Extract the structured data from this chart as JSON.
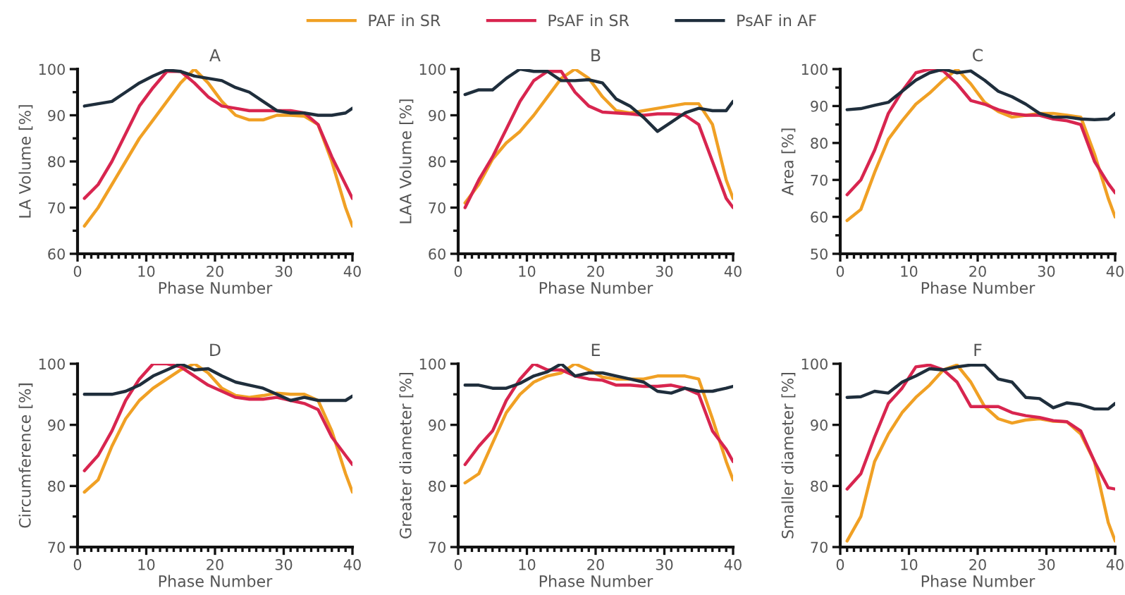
{
  "chart_data": [
    {
      "type": "line",
      "title": "A",
      "xlabel": "Phase Number",
      "ylabel": "LA Volume [%]",
      "xlim": [
        0,
        40
      ],
      "xticks": [
        0,
        10,
        20,
        30,
        40
      ],
      "ylim": [
        60,
        100
      ],
      "yticks": [
        60,
        70,
        80,
        90,
        100
      ],
      "legend": "top",
      "x": [
        1,
        3,
        5,
        7,
        9,
        11,
        13,
        15,
        17,
        19,
        21,
        23,
        25,
        27,
        29,
        31,
        33,
        35,
        37,
        39,
        40
      ],
      "series": [
        {
          "name": "PAF in SR",
          "color": "#f0a024",
          "values": [
            66,
            70,
            75,
            80,
            85,
            89,
            93,
            97,
            100,
            97,
            93,
            90,
            89,
            89,
            90,
            90,
            89.8,
            88,
            80,
            70,
            66
          ]
        },
        {
          "name": "PsAF in SR",
          "color": "#d8254f",
          "values": [
            72,
            75,
            80,
            86,
            92,
            96,
            99.5,
            99.5,
            97,
            94,
            92,
            91.5,
            91,
            91,
            91,
            91,
            90.5,
            88,
            81,
            75,
            72
          ]
        },
        {
          "name": "PsAF in AF",
          "color": "#1f2e3c",
          "values": [
            92,
            92.5,
            93,
            95,
            97,
            98.5,
            99.8,
            99.5,
            98.5,
            98,
            97.5,
            96,
            95,
            93,
            91,
            90.5,
            90.5,
            90,
            90,
            90.5,
            91.5
          ]
        }
      ]
    },
    {
      "type": "line",
      "title": "B",
      "xlabel": "Phase Number",
      "ylabel": "LAA Volume [%]",
      "xlim": [
        0,
        40
      ],
      "xticks": [
        0,
        10,
        20,
        30,
        40
      ],
      "ylim": [
        60,
        100
      ],
      "yticks": [
        60,
        70,
        80,
        90,
        100
      ],
      "x": [
        1,
        3,
        5,
        7,
        9,
        11,
        13,
        15,
        17,
        19,
        21,
        23,
        25,
        27,
        29,
        31,
        33,
        35,
        37,
        39,
        40
      ],
      "series": [
        {
          "color": "#f0a024",
          "values": [
            71,
            75,
            80.5,
            84,
            86.5,
            90,
            94,
            98,
            100,
            98,
            94,
            91,
            90.5,
            91,
            91.5,
            92,
            92.5,
            92.5,
            88,
            76,
            72
          ]
        },
        {
          "color": "#d8254f",
          "values": [
            70,
            76,
            81,
            87,
            93,
            97.5,
            99.5,
            99.5,
            95,
            92,
            90.7,
            90.5,
            90.3,
            90,
            90.3,
            90.3,
            90,
            88,
            80,
            72,
            70
          ]
        },
        {
          "color": "#1f2e3c",
          "values": [
            94.5,
            95.5,
            95.5,
            98,
            100,
            99.5,
            99.5,
            97.5,
            97.5,
            97.7,
            97,
            93.5,
            92,
            89.5,
            86.5,
            88.5,
            90.5,
            91.5,
            91,
            91,
            93
          ]
        }
      ]
    },
    {
      "type": "line",
      "title": "C",
      "xlabel": "Phase Number",
      "ylabel": "Area [%]",
      "xlim": [
        0,
        40
      ],
      "xticks": [
        0,
        10,
        20,
        30,
        40
      ],
      "ylim": [
        50,
        100
      ],
      "yticks": [
        50,
        60,
        70,
        80,
        90,
        100
      ],
      "x": [
        1,
        3,
        5,
        7,
        9,
        11,
        13,
        15,
        17,
        19,
        21,
        23,
        25,
        27,
        29,
        31,
        33,
        35,
        37,
        39,
        40
      ],
      "series": [
        {
          "color": "#f0a024",
          "values": [
            59,
            62,
            72,
            81,
            86,
            90.5,
            93.5,
            97,
            100,
            96,
            91,
            88.5,
            87,
            87.5,
            88,
            88,
            87.5,
            87,
            77,
            65,
            60
          ]
        },
        {
          "color": "#d8254f",
          "values": [
            66,
            70,
            78,
            88,
            94,
            99,
            100,
            99.5,
            96,
            91.5,
            90.5,
            89,
            88,
            87.5,
            87.5,
            86.5,
            86,
            85,
            75,
            69,
            66.5
          ]
        },
        {
          "color": "#1f2e3c",
          "values": [
            89,
            89.3,
            90.2,
            91,
            94,
            97,
            99,
            100,
            99,
            99.5,
            97,
            94,
            92.5,
            90.5,
            88,
            87,
            87,
            86.5,
            86.3,
            86.5,
            88
          ]
        }
      ]
    },
    {
      "type": "line",
      "title": "D",
      "xlabel": "Phase Number",
      "ylabel": "Circumference [%]",
      "xlim": [
        0,
        40
      ],
      "xticks": [
        0,
        10,
        20,
        30,
        40
      ],
      "ylim": [
        70,
        100
      ],
      "yticks": [
        70,
        80,
        90,
        100
      ],
      "x": [
        1,
        3,
        5,
        7,
        9,
        11,
        13,
        15,
        17,
        19,
        21,
        23,
        25,
        27,
        29,
        31,
        33,
        35,
        37,
        39,
        40
      ],
      "series": [
        {
          "color": "#f0a024",
          "values": [
            79,
            81,
            86.5,
            91,
            94,
            96,
            97.5,
            99,
            100,
            98.5,
            96,
            94.8,
            94.5,
            94.8,
            95.2,
            95,
            95,
            94,
            89,
            82,
            79
          ]
        },
        {
          "color": "#d8254f",
          "values": [
            82.5,
            85,
            89,
            94,
            97.5,
            100,
            100,
            99.5,
            98,
            96.5,
            95.5,
            94.5,
            94.2,
            94.2,
            94.5,
            94,
            93.5,
            92.5,
            88,
            85,
            83.5
          ]
        },
        {
          "color": "#1f2e3c",
          "values": [
            95,
            95,
            95,
            95.5,
            96.5,
            98,
            99,
            100,
            99,
            99.2,
            98,
            97,
            96.5,
            96,
            95,
            94,
            94.5,
            94,
            94,
            94,
            94.7
          ]
        }
      ]
    },
    {
      "type": "line",
      "title": "E",
      "xlabel": "Phase Number",
      "ylabel": "Greater diameter [%]",
      "xlim": [
        0,
        40
      ],
      "xticks": [
        0,
        10,
        20,
        30,
        40
      ],
      "ylim": [
        70,
        100
      ],
      "yticks": [
        70,
        80,
        90,
        100
      ],
      "x": [
        1,
        3,
        5,
        7,
        9,
        11,
        13,
        15,
        17,
        19,
        21,
        23,
        25,
        27,
        29,
        31,
        33,
        35,
        37,
        39,
        40
      ],
      "series": [
        {
          "color": "#f0a024",
          "values": [
            80.5,
            82,
            87,
            92,
            95,
            97,
            98,
            98.5,
            100,
            99,
            97.8,
            97.5,
            97.5,
            97.5,
            98,
            98,
            98,
            97.5,
            91,
            84,
            81
          ]
        },
        {
          "color": "#d8254f",
          "values": [
            83.5,
            86.5,
            89,
            94,
            97.5,
            100,
            99,
            99,
            98,
            97.5,
            97.3,
            96.5,
            96.5,
            96.3,
            96.3,
            96.5,
            96,
            95,
            89,
            86,
            84
          ]
        },
        {
          "color": "#1f2e3c",
          "values": [
            96.5,
            96.5,
            96,
            96,
            96.8,
            98,
            98.7,
            100,
            98,
            98.5,
            98.5,
            98,
            97.5,
            97,
            95.5,
            95.2,
            96,
            95.5,
            95.5,
            96,
            96.3
          ]
        }
      ]
    },
    {
      "type": "line",
      "title": "F",
      "xlabel": "Phase Number",
      "ylabel": "Smaller diameter [%]",
      "xlim": [
        0,
        40
      ],
      "xticks": [
        0,
        10,
        20,
        30,
        40
      ],
      "ylim": [
        70,
        100
      ],
      "yticks": [
        70,
        80,
        90,
        100
      ],
      "x": [
        1,
        3,
        5,
        7,
        9,
        11,
        13,
        15,
        17,
        19,
        21,
        23,
        25,
        27,
        29,
        31,
        33,
        35,
        37,
        39,
        40
      ],
      "series": [
        {
          "color": "#f0a024",
          "values": [
            71,
            75,
            84,
            88.5,
            92,
            94.5,
            96.5,
            99,
            99.8,
            97,
            93,
            91,
            90.3,
            90.8,
            91,
            90.6,
            90.5,
            88.5,
            84,
            74,
            71
          ]
        },
        {
          "color": "#d8254f",
          "values": [
            79.5,
            82,
            88,
            93.5,
            96,
            99.5,
            99.8,
            99,
            97,
            93,
            93,
            93,
            92,
            91.5,
            91.2,
            90.7,
            90.5,
            89,
            84,
            79.7,
            79.5
          ]
        },
        {
          "color": "#1f2e3c",
          "values": [
            94.5,
            94.6,
            95.5,
            95.2,
            97,
            98,
            99.2,
            99,
            99.5,
            99.8,
            99.8,
            97.5,
            97,
            94.5,
            94.3,
            92.8,
            93.6,
            93.3,
            92.6,
            92.6,
            93.5
          ]
        }
      ]
    }
  ]
}
